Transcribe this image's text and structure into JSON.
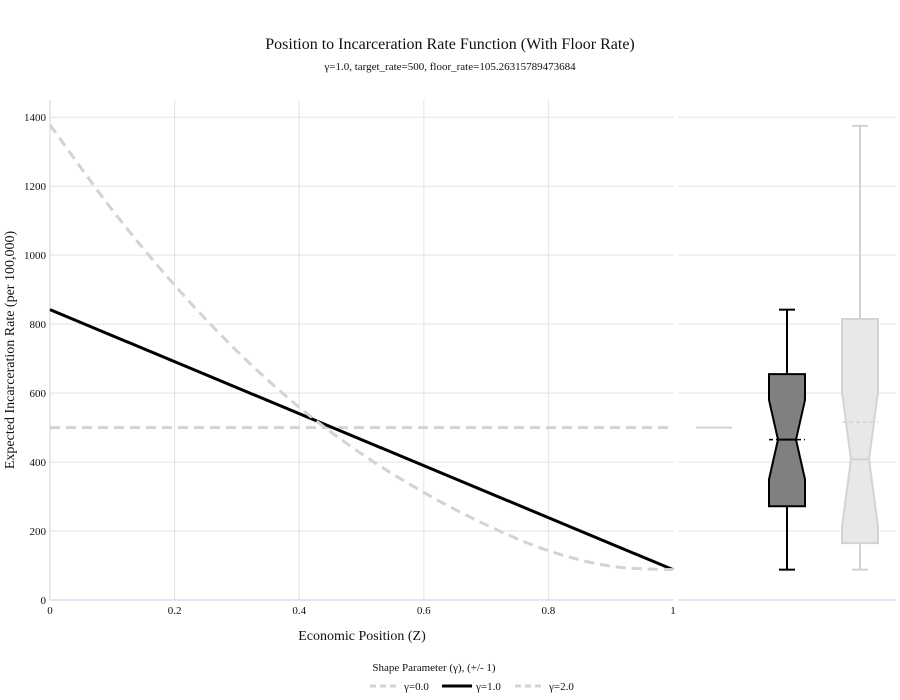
{
  "chart_data": {
    "type": "line",
    "title": "Position to Incarceration Rate Function (With Floor Rate)",
    "subtitle": "γ=1.0, target_rate=500, floor_rate=105.26315789473684",
    "xlabel": "Economic Position (Z)",
    "ylabel": "Expected Incarceration Rate (per 100,000)",
    "xlim": [
      0,
      1
    ],
    "ylim": [
      0,
      1450
    ],
    "xticks": [
      "0",
      "0.2",
      "0.4",
      "0.6",
      "0.8",
      "1"
    ],
    "xtick_values": [
      0,
      0.2,
      0.4,
      0.6,
      0.8,
      1
    ],
    "yticks": [
      "0",
      "200",
      "400",
      "600",
      "800",
      "1000",
      "1200",
      "1400"
    ],
    "ytick_values": [
      0,
      200,
      400,
      600,
      800,
      1000,
      1200,
      1400
    ],
    "grid": true,
    "legend": {
      "title": "Shape Parameter (γ), (+/- 1)",
      "placement": "bottom",
      "entries": [
        "γ=0.0",
        "γ=1.0",
        "γ=2.0"
      ]
    },
    "series": [
      {
        "name": "γ=0.0",
        "style": "dashed",
        "color": "#d3d3d3",
        "x": [
          0,
          1
        ],
        "y": [
          500,
          500
        ]
      },
      {
        "name": "γ=1.0",
        "style": "solid",
        "color": "#000000",
        "x": [
          0,
          1
        ],
        "y": [
          842,
          88
        ]
      },
      {
        "name": "γ=2.0",
        "style": "dashed",
        "color": "#d3d3d3",
        "x": [
          0,
          0.1,
          0.2,
          0.3,
          0.4,
          0.5,
          0.6,
          0.7,
          0.8,
          0.9,
          1.0
        ],
        "y": [
          1378,
          1131,
          913,
          722,
          559,
          424,
          312,
          218,
          143,
          98,
          88
        ]
      }
    ],
    "marginal_boxplots": [
      {
        "series": "γ=0.0",
        "min": 500,
        "q1": 500,
        "median": 500,
        "q3": 500,
        "max": 500,
        "mean": 500,
        "color": "#d3d3d3"
      },
      {
        "series": "γ=1.0",
        "min": 88,
        "q1": 272,
        "median": 465,
        "q3": 655,
        "max": 842,
        "mean": 465,
        "color": "#000000",
        "fill": "#808080",
        "notched": true
      },
      {
        "series": "γ=2.0",
        "min": 88,
        "q1": 165,
        "median": 408,
        "q3": 815,
        "max": 1375,
        "mean": 516,
        "color": "#d3d3d3",
        "fill": "#e8e8e8",
        "notched": true
      }
    ]
  }
}
